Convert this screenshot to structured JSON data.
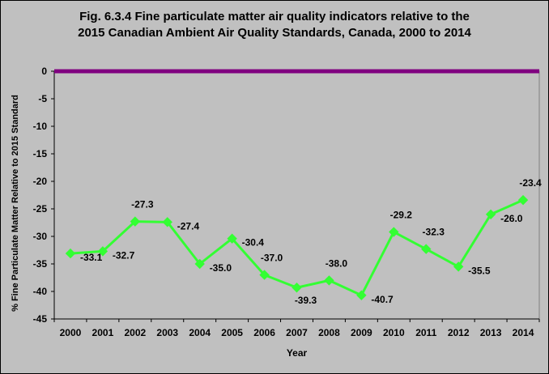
{
  "chart_data": {
    "type": "line",
    "title_line1": "Fig. 6.3.4 Fine particulate matter air quality indicators relative to the",
    "title_line2": "2015 Canadian Ambient Air Quality Standards, Canada, 2000 to 2014",
    "xlabel": "Year",
    "ylabel": "% Fine Particulate Matter Relative to 2015 Standard",
    "ylim": [
      -45,
      0
    ],
    "yticks": [
      0,
      -5,
      -10,
      -15,
      -20,
      -25,
      -30,
      -35,
      -40,
      -45
    ],
    "categories": [
      "2000",
      "2001",
      "2002",
      "2003",
      "2004",
      "2005",
      "2006",
      "2007",
      "2008",
      "2009",
      "2010",
      "2011",
      "2012",
      "2013",
      "2014"
    ],
    "series": [
      {
        "values": [
          -33.1,
          -32.7,
          -27.3,
          -27.4,
          -35.0,
          -30.4,
          -37.0,
          -39.3,
          -38.0,
          -40.7,
          -29.2,
          -32.3,
          -35.5,
          -26.0,
          -23.4
        ],
        "labels": [
          "-33.1",
          "-32.7",
          "-27.3",
          "-27.4",
          "-35.0",
          "-30.4",
          "-37.0",
          "-39.3",
          "-38.0",
          "-40.7",
          "-29.2",
          "-32.3",
          "-35.5",
          "-26.0",
          "-23.4"
        ],
        "color": "#33ff33"
      }
    ],
    "reference_line": {
      "value": 0,
      "color": "#800080"
    },
    "grid": false,
    "legend": "none",
    "background": "#c0c0c0"
  }
}
